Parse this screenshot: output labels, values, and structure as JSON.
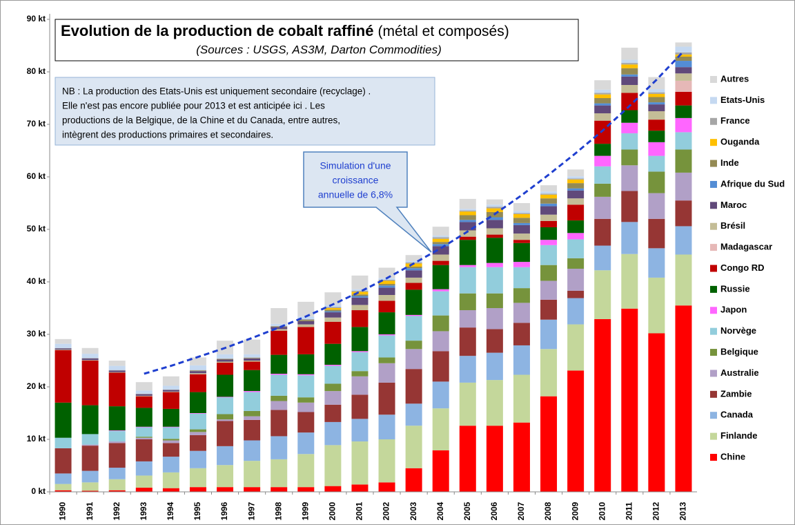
{
  "chart_data": {
    "type": "stacked_bar",
    "title": "Evolution de la production de cobalt raffiné",
    "title_note": "(métal et composés)",
    "subtitle": "(Sources : USGS, AS3M, Darton Commodities)",
    "note": [
      "NB : La production des Etats-Unis  est uniquement secondaire (recyclage) .",
      "Elle n'est pas encore publiée pour 2013 et est anticipée ici . Les",
      "productions de la Belgique, de la Chine et du Canada, entre autres,",
      "intègrent des productions primaires et secondaires."
    ],
    "annotation": [
      "Simulation d'une",
      "croissance",
      "annuelle de 6,8%"
    ],
    "categories": [
      "1990",
      "1991",
      "1992",
      "1993",
      "1994",
      "1995",
      "1996",
      "1997",
      "1998",
      "1999",
      "2000",
      "2001",
      "2002",
      "2003",
      "2004",
      "2005",
      "2006",
      "2007",
      "2008",
      "2009",
      "2010",
      "2011",
      "2012",
      "2013"
    ],
    "ylim": [
      0,
      90
    ],
    "yticks": [
      {
        "value": 0,
        "label": "0 kt"
      },
      {
        "value": 10,
        "label": "10 kt"
      },
      {
        "value": 20,
        "label": "20 kt"
      },
      {
        "value": 30,
        "label": "30 kt"
      },
      {
        "value": 40,
        "label": "40 kt"
      },
      {
        "value": 50,
        "label": "50 kt"
      },
      {
        "value": 60,
        "label": "60 kt"
      },
      {
        "value": 70,
        "label": "70 kt"
      },
      {
        "value": 80,
        "label": "80 kt"
      },
      {
        "value": 90,
        "label": "90 kt"
      }
    ],
    "grid": false,
    "legend": "right",
    "series": [
      {
        "name": "Chine",
        "color": "#ff0000",
        "values": [
          0.3,
          0.2,
          0.3,
          0.8,
          0.7,
          0.9,
          0.9,
          0.9,
          0.9,
          0.9,
          1.1,
          1.4,
          1.8,
          4.5,
          7.9,
          12.6,
          12.6,
          13.2,
          18.2,
          23.1,
          32.9,
          34.9,
          30.2,
          35.5
        ]
      },
      {
        "name": "Finlande",
        "color": "#c4d79b",
        "values": [
          1.2,
          1.6,
          2.1,
          2.3,
          3,
          3.6,
          4.2,
          5,
          5.3,
          6.3,
          7.8,
          8.2,
          8.2,
          8.1,
          8,
          8.2,
          8.7,
          9.1,
          9,
          8.8,
          9.3,
          10.4,
          10.6,
          9.7
        ]
      },
      {
        "name": "Canada",
        "color": "#8db4e2",
        "values": [
          2,
          2.2,
          2.2,
          2.7,
          3,
          3.3,
          3.6,
          3.9,
          4.4,
          4.1,
          4.4,
          4.3,
          4.7,
          4.2,
          5.1,
          5.1,
          5.2,
          5.6,
          5.6,
          5,
          4.7,
          6.1,
          5.6,
          5.4
        ]
      },
      {
        "name": "Zambie",
        "color": "#963634",
        "values": [
          4.8,
          4.8,
          4.7,
          4.2,
          2.6,
          3,
          4.8,
          3.9,
          5,
          3.9,
          3.3,
          4.6,
          6.1,
          6.6,
          5.8,
          5.4,
          4.5,
          4.3,
          3.8,
          1.4,
          5.1,
          5.9,
          5.6,
          4.9
        ]
      },
      {
        "name": "Australie",
        "color": "#b1a0c7",
        "values": [
          0,
          0.2,
          0.3,
          0.3,
          0.5,
          0.6,
          0.3,
          0.7,
          1.7,
          1.8,
          2.6,
          3.5,
          3.7,
          3.8,
          3.8,
          3.3,
          4,
          3.8,
          3.6,
          4.2,
          4.2,
          4.9,
          4.9,
          5.3
        ]
      },
      {
        "name": "Belgique",
        "color": "#76933c",
        "values": [
          0,
          0,
          0,
          0.2,
          0.3,
          0.5,
          1,
          1,
          1,
          1,
          1.4,
          1,
          1.1,
          1.6,
          3,
          3.2,
          2.8,
          2.8,
          3,
          2,
          2.5,
          3,
          4.1,
          4.4
        ]
      },
      {
        "name": "Norvège",
        "color": "#92cddc",
        "values": [
          2,
          2,
          2,
          1.8,
          2.2,
          3,
          3.2,
          3.6,
          4,
          4.2,
          3.4,
          3.6,
          4.2,
          4.7,
          4.6,
          5,
          5,
          4,
          3.8,
          3.6,
          3.3,
          3.1,
          3,
          3.3
        ]
      },
      {
        "name": "Japon",
        "color": "#ff66ff",
        "values": [
          0,
          0,
          0.1,
          0.1,
          0.1,
          0.1,
          0.1,
          0.2,
          0.2,
          0.2,
          0.2,
          0.2,
          0.2,
          0.2,
          0.4,
          0.4,
          0.8,
          1,
          1,
          1.2,
          2,
          2,
          2.6,
          2.7
        ]
      },
      {
        "name": "Russie",
        "color": "#006100",
        "values": [
          6.7,
          5.5,
          4.6,
          3.6,
          3.4,
          4,
          4.2,
          4,
          3.6,
          3.8,
          4,
          4.6,
          4.2,
          4.8,
          4.6,
          4.8,
          4.8,
          3.6,
          2.4,
          2.4,
          2.3,
          2.4,
          2.2,
          2.4
        ]
      },
      {
        "name": "Congo RD",
        "color": "#c00000",
        "values": [
          10,
          8.5,
          6.4,
          2.2,
          3.2,
          3.4,
          2.3,
          1.6,
          4.6,
          5.2,
          4.2,
          3.2,
          2.2,
          1.3,
          0.8,
          0.6,
          0.6,
          0.6,
          1.2,
          3,
          4.4,
          3.3,
          2.1,
          2.6
        ]
      },
      {
        "name": "Madagascar",
        "color": "#e6b8b7",
        "values": [
          0,
          0,
          0,
          0,
          0,
          0,
          0,
          0,
          0,
          0,
          0,
          0,
          0,
          0,
          0,
          0,
          0,
          0,
          0,
          0,
          0,
          0,
          0,
          2.1
        ]
      },
      {
        "name": "Brésil",
        "color": "#c4bd97",
        "values": [
          0.1,
          0.1,
          0.1,
          0.1,
          0.1,
          0.2,
          0.2,
          0.2,
          0.3,
          0.5,
          0.8,
          1,
          1.1,
          1,
          1.2,
          1.2,
          1.2,
          1.2,
          1.2,
          1.2,
          1.4,
          1.5,
          1.6,
          1.4
        ]
      },
      {
        "name": "Maroc",
        "color": "#60497a",
        "values": [
          0.2,
          0.3,
          0.3,
          0.3,
          0.3,
          0.4,
          0.4,
          0.4,
          0.4,
          0.6,
          1,
          1.4,
          1.4,
          1.4,
          1.6,
          1.6,
          1.6,
          1.6,
          1.6,
          1.5,
          1.5,
          1.6,
          1.3,
          1.2
        ]
      },
      {
        "name": "Afrique du Sud",
        "color": "#538dd5",
        "values": [
          0,
          0,
          0,
          0,
          0,
          0,
          0,
          0,
          0,
          0,
          0.2,
          0.3,
          0.4,
          0.4,
          0.4,
          0.4,
          0.5,
          0.4,
          0.5,
          0.4,
          0.4,
          0.4,
          0.4,
          1.2
        ]
      },
      {
        "name": "Inde",
        "color": "#948a54",
        "values": [
          0,
          0,
          0,
          0,
          0,
          0.1,
          0.1,
          0.1,
          0.1,
          0.2,
          0.3,
          0.3,
          0.3,
          0.3,
          0.4,
          0.9,
          1,
          1,
          1,
          1,
          1,
          1.2,
          1,
          0.8
        ]
      },
      {
        "name": "Ouganda",
        "color": "#ffc000",
        "values": [
          0,
          0,
          0,
          0,
          0,
          0,
          0,
          0,
          0,
          0,
          0.3,
          0.5,
          0.6,
          0.6,
          0.6,
          0.7,
          0.7,
          0.7,
          0.7,
          0.7,
          0.7,
          0.7,
          0.6,
          0.4
        ]
      },
      {
        "name": "France",
        "color": "#a6a6a6",
        "values": [
          0.1,
          0.1,
          0.1,
          0.1,
          0.1,
          0.1,
          0.1,
          0.1,
          0.1,
          0.2,
          0.2,
          0.2,
          0.2,
          0.2,
          0.3,
          0.2,
          0.3,
          0.2,
          0.2,
          0.2,
          0.3,
          0.3,
          0.3,
          0.4
        ]
      },
      {
        "name": "Etats-Unis",
        "color": "#c5d9f1",
        "values": [
          0.8,
          0.8,
          0.8,
          0.6,
          0.7,
          0.9,
          0.8,
          0.6,
          0.4,
          0.5,
          0.4,
          0.3,
          0.3,
          0.3,
          0.3,
          0.3,
          0.4,
          0.4,
          0.4,
          0.4,
          0.6,
          0.6,
          0.6,
          1.1
        ]
      },
      {
        "name": "Autres",
        "color": "#d9d9d9",
        "values": [
          0.9,
          1.1,
          1,
          1.6,
          1.8,
          1.5,
          2.6,
          2.8,
          3,
          2.8,
          2.4,
          2.6,
          2,
          1.1,
          1.7,
          1.9,
          1,
          1.5,
          1.2,
          1.3,
          1.8,
          2.3,
          2.3,
          0.8
        ]
      }
    ],
    "trend": {
      "color": "#1f3fcf",
      "values": [
        null,
        null,
        null,
        22.5,
        24.0,
        25.7,
        27.4,
        29.3,
        31.3,
        33.4,
        35.7,
        38.1,
        40.7,
        43.5,
        46.4,
        49.6,
        52.9,
        56.5,
        60.4,
        64.5,
        68.8,
        73.5,
        78.5,
        83.9
      ]
    }
  }
}
